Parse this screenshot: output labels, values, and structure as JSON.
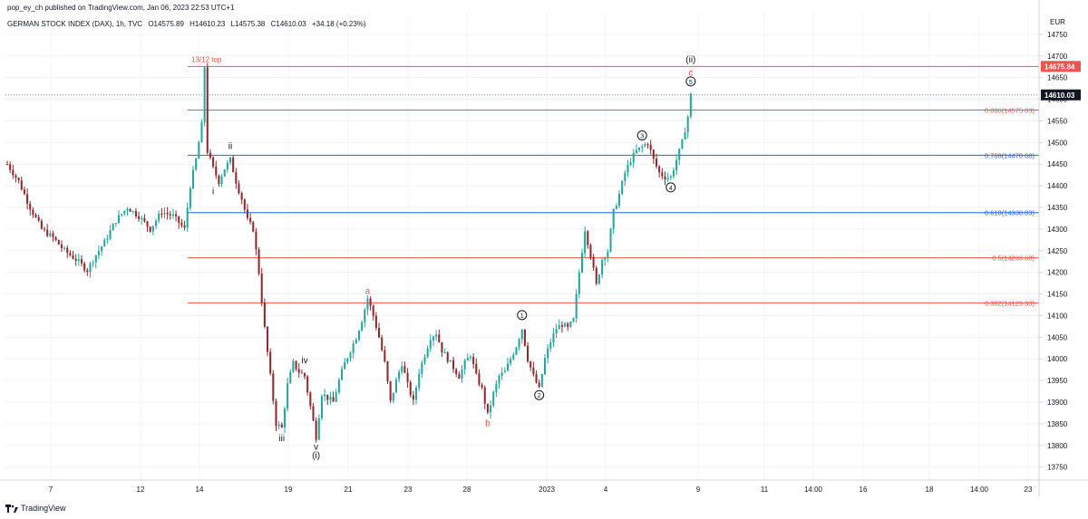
{
  "header": {
    "publisher": "pop_ey_ch published on TradingView.com, Jan 06, 2023 22:53 UTC+1"
  },
  "symbol_bar": {
    "name": "GERMAN STOCK INDEX (DAX), 1h, TVC",
    "open": "O14575.89",
    "high": "H14610.23",
    "low": "L14575.38",
    "close": "C14610.03",
    "change": "+34.18 (+0.23%)"
  },
  "footer": {
    "brand": "TradingView"
  },
  "colors": {
    "up": "#26a69a",
    "down": "#8b2a30",
    "body": "#2a2e39",
    "red_line": "#ef5350",
    "blue_line": "#2962ff",
    "grid": "#f0f3fa"
  },
  "chart_data": {
    "type": "candlestick",
    "title": "GERMAN STOCK INDEX (DAX), 1h, TVC",
    "currency": "EUR",
    "ylim": [
      13720,
      14800
    ],
    "y_ticks": [
      13750,
      13800,
      13850,
      13900,
      13950,
      14000,
      14050,
      14100,
      14150,
      14200,
      14250,
      14300,
      14350,
      14400,
      14450,
      14500,
      14550,
      14600,
      14650,
      14700,
      14750
    ],
    "x_ticks": [
      "7",
      "12",
      "14",
      "19",
      "21",
      "23",
      "28",
      "2023",
      "4",
      "9",
      "11",
      "14:00",
      "16",
      "18",
      "14:00",
      "23"
    ],
    "last_price": "14610.03",
    "top_price_label": "14675.84",
    "price_path": [
      [
        0,
        14450
      ],
      [
        4,
        14410
      ],
      [
        8,
        14350
      ],
      [
        12,
        14300
      ],
      [
        16,
        14280
      ],
      [
        20,
        14250
      ],
      [
        24,
        14230
      ],
      [
        28,
        14205
      ],
      [
        30,
        14230
      ],
      [
        34,
        14270
      ],
      [
        38,
        14320
      ],
      [
        42,
        14350
      ],
      [
        46,
        14330
      ],
      [
        50,
        14300
      ],
      [
        54,
        14340
      ],
      [
        58,
        14330
      ],
      [
        62,
        14300
      ],
      [
        64,
        14400
      ],
      [
        66,
        14460
      ],
      [
        68,
        14540
      ],
      [
        69,
        14675
      ],
      [
        70,
        14480
      ],
      [
        72,
        14440
      ],
      [
        74,
        14410
      ],
      [
        76,
        14440
      ],
      [
        78,
        14460
      ],
      [
        80,
        14410
      ],
      [
        82,
        14370
      ],
      [
        84,
        14320
      ],
      [
        86,
        14300
      ],
      [
        88,
        14200
      ],
      [
        90,
        14070
      ],
      [
        92,
        13960
      ],
      [
        94,
        13850
      ],
      [
        96,
        13840
      ],
      [
        98,
        13940
      ],
      [
        100,
        13990
      ],
      [
        102,
        13970
      ],
      [
        104,
        13960
      ],
      [
        106,
        13890
      ],
      [
        108,
        13820
      ],
      [
        110,
        13920
      ],
      [
        112,
        13910
      ],
      [
        114,
        13900
      ],
      [
        116,
        13950
      ],
      [
        118,
        13990
      ],
      [
        120,
        14020
      ],
      [
        122,
        14050
      ],
      [
        124,
        14090
      ],
      [
        126,
        14140
      ],
      [
        128,
        14100
      ],
      [
        130,
        14050
      ],
      [
        132,
        13990
      ],
      [
        134,
        13900
      ],
      [
        136,
        13950
      ],
      [
        138,
        13990
      ],
      [
        140,
        13940
      ],
      [
        142,
        13900
      ],
      [
        144,
        13970
      ],
      [
        146,
        14010
      ],
      [
        148,
        14050
      ],
      [
        150,
        14060
      ],
      [
        152,
        14020
      ],
      [
        154,
        14000
      ],
      [
        156,
        13980
      ],
      [
        158,
        13960
      ],
      [
        160,
        13990
      ],
      [
        162,
        14010
      ],
      [
        164,
        13960
      ],
      [
        166,
        13930
      ],
      [
        168,
        13870
      ],
      [
        170,
        13920
      ],
      [
        172,
        13960
      ],
      [
        174,
        13970
      ],
      [
        176,
        14000
      ],
      [
        178,
        14030
      ],
      [
        180,
        14070
      ],
      [
        182,
        14000
      ],
      [
        184,
        13960
      ],
      [
        186,
        13930
      ],
      [
        188,
        14000
      ],
      [
        190,
        14040
      ],
      [
        192,
        14070
      ],
      [
        194,
        14080
      ],
      [
        196,
        14070
      ],
      [
        198,
        14090
      ],
      [
        200,
        14200
      ],
      [
        202,
        14300
      ],
      [
        204,
        14240
      ],
      [
        206,
        14170
      ],
      [
        208,
        14230
      ],
      [
        210,
        14250
      ],
      [
        212,
        14340
      ],
      [
        214,
        14380
      ],
      [
        216,
        14430
      ],
      [
        218,
        14460
      ],
      [
        220,
        14480
      ],
      [
        222,
        14490
      ],
      [
        224,
        14500
      ],
      [
        226,
        14460
      ],
      [
        228,
        14430
      ],
      [
        230,
        14420
      ],
      [
        232,
        14420
      ],
      [
        234,
        14460
      ],
      [
        236,
        14500
      ],
      [
        238,
        14560
      ],
      [
        239,
        14610
      ]
    ],
    "fib_levels": [
      {
        "ratio": 0.886,
        "value": 14575.03,
        "label": "0.886(14575.03)",
        "color": "red"
      },
      {
        "ratio": 0.768,
        "value": 14470.68,
        "label": "0.768(14470.68)",
        "color": "blue"
      },
      {
        "ratio": 0.618,
        "value": 14338.03,
        "label": "0.618(14338.03)",
        "color": "blue"
      },
      {
        "ratio": 0.5,
        "value": 14233.68,
        "label": "0.5(14233.68)",
        "color": "red"
      },
      {
        "ratio": 0.382,
        "value": 14129.33,
        "label": "0.382(14129.33)",
        "color": "red"
      }
    ],
    "top_line": {
      "value": 14675.84,
      "label": "13/12 top"
    },
    "wave_labels": [
      {
        "text": "ii",
        "t": 78,
        "v": 14485,
        "color": "black"
      },
      {
        "text": "i",
        "t": 72,
        "v": 14380,
        "color": "black"
      },
      {
        "text": "iii",
        "t": 96,
        "v": 13810,
        "color": "black"
      },
      {
        "text": "iv",
        "t": 104,
        "v": 13990,
        "color": "black"
      },
      {
        "text": "v",
        "t": 108,
        "v": 13790,
        "color": "black"
      },
      {
        "text": "(i)",
        "t": 108,
        "v": 13770,
        "color": "black"
      },
      {
        "text": "a",
        "t": 126,
        "v": 14150,
        "color": "red"
      },
      {
        "text": "b",
        "t": 168,
        "v": 13845,
        "color": "red"
      },
      {
        "text": "1",
        "t": 180,
        "v": 14095,
        "color": "black",
        "circled": true
      },
      {
        "text": "2",
        "t": 186,
        "v": 13910,
        "color": "black",
        "circled": true
      },
      {
        "text": "3",
        "t": 222,
        "v": 14510,
        "color": "black",
        "circled": true
      },
      {
        "text": "4",
        "t": 232,
        "v": 14390,
        "color": "black",
        "circled": true
      },
      {
        "text": "5",
        "t": 239,
        "v": 14635,
        "color": "black",
        "circled": true
      },
      {
        "text": "c",
        "t": 239,
        "v": 14655,
        "color": "red"
      },
      {
        "text": "(ii)",
        "t": 239,
        "v": 14685,
        "color": "black"
      }
    ]
  }
}
